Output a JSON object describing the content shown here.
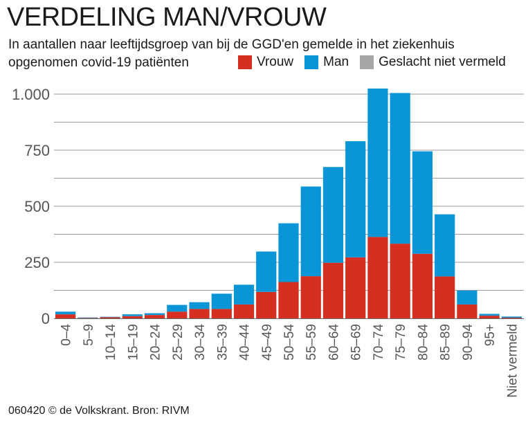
{
  "title": "VERDELING MAN/VROUW",
  "subtitle": "In aantallen naar leeftijdsgroep van bij de GGD'en gemelde in het ziekenhuis opgenomen covid-19 patiënten",
  "legend": [
    {
      "label": "Vrouw",
      "color": "#d42f21"
    },
    {
      "label": "Man",
      "color": "#0a96d6"
    },
    {
      "label": "Geslacht niet vermeld",
      "color": "#a6a6a6"
    }
  ],
  "source": "060420 © de Volkskrant. Bron: RIVM",
  "chart_data": {
    "type": "bar",
    "stacked": true,
    "categories": [
      "0–4",
      "5–9",
      "10–14",
      "15–19",
      "20–24",
      "25–29",
      "30–34",
      "35–39",
      "40–44",
      "45–49",
      "50–54",
      "55–59",
      "60–64",
      "65–69",
      "70–74",
      "75–79",
      "80–84",
      "85–89",
      "90–94",
      "95+",
      "Niet vermeld"
    ],
    "series": [
      {
        "name": "Vrouw",
        "color": "#d42f21",
        "values": [
          18,
          2,
          5,
          10,
          15,
          30,
          42,
          42,
          62,
          118,
          162,
          188,
          248,
          272,
          363,
          333,
          288,
          187,
          62,
          12,
          3
        ]
      },
      {
        "name": "Man",
        "color": "#0a96d6",
        "values": [
          12,
          2,
          2,
          8,
          8,
          30,
          30,
          68,
          88,
          180,
          262,
          400,
          427,
          518,
          662,
          672,
          457,
          277,
          62,
          8,
          5
        ]
      },
      {
        "name": "Geslacht niet vermeld",
        "color": "#a6a6a6",
        "values": [
          0,
          0,
          0,
          0,
          0,
          0,
          0,
          0,
          0,
          0,
          0,
          0,
          0,
          0,
          0,
          0,
          0,
          0,
          0,
          0,
          0
        ]
      }
    ],
    "yticks": [
      0,
      250,
      500,
      750,
      1000
    ],
    "ytick_labels": [
      "0",
      "250",
      "500",
      "750",
      "1.000"
    ],
    "ylim": [
      0,
      1050
    ],
    "grid": true,
    "legend_position": "top-right"
  }
}
